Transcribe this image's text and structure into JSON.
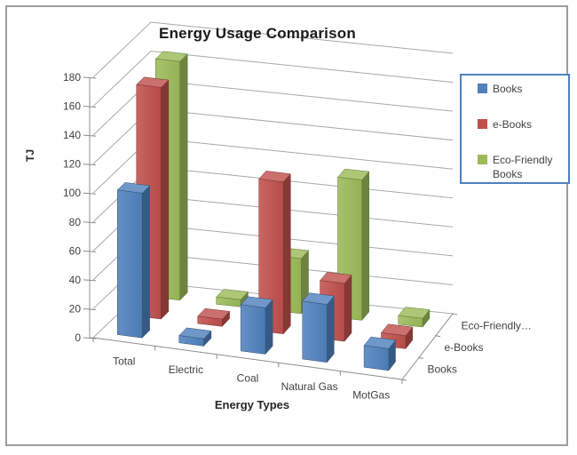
{
  "chart_data": {
    "type": "bar",
    "variant": "3d-clustered-depth",
    "title": "Energy Usage Comparison",
    "xlabel": "Energy Types",
    "ylabel": "TJ",
    "categories": [
      "Total",
      "Electric",
      "Coal",
      "Natural Gas",
      "MotGas"
    ],
    "series": [
      {
        "name": "Books",
        "color": "#4F81BD",
        "values": [
          100,
          5,
          32,
          40,
          15
        ]
      },
      {
        "name": "e-Books",
        "color": "#C0504D",
        "values": [
          160,
          5,
          105,
          40,
          9
        ]
      },
      {
        "name": "Eco-Friendly Books",
        "color": "#9BBB59",
        "values": [
          165,
          5,
          38,
          97,
          6
        ]
      }
    ],
    "depth_axis_labels": [
      "Books",
      "e-Books",
      "Eco-Friendly…"
    ],
    "ylim": [
      0,
      180
    ],
    "ytick_step": 20,
    "grid": true,
    "legend_position": "right",
    "gridline_color": "#A8A8A8",
    "axis_color": "#8c8c8c",
    "text_color": "#404040"
  },
  "frame": {
    "border_color": "#9d9d9d"
  }
}
